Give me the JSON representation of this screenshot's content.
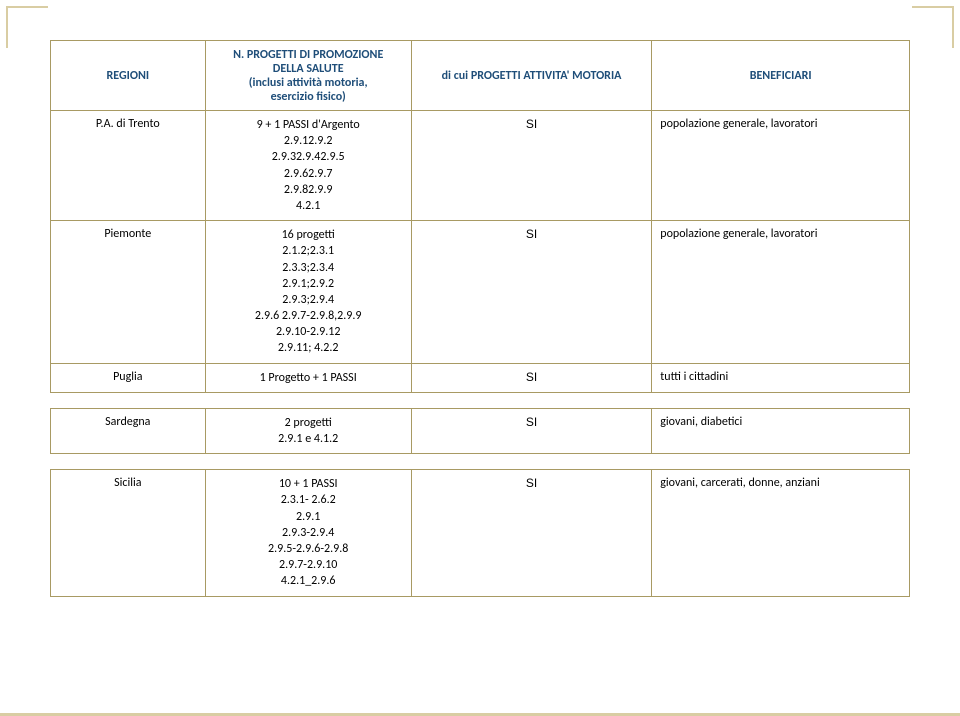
{
  "accent_color": "#1f4e79",
  "border_color": "#a89a63",
  "decor_color": "#d9cda3",
  "headers": {
    "regioni": "REGIONI",
    "progetti": "N. PROGETTI DI PROMOZIONE\nDELLA SALUTE\n(inclusi attività motoria,\nesercizio fisico)",
    "attivita": "di cui PROGETTI ATTIVITA' MOTORIA",
    "beneficiari": "BENEFICIARI"
  },
  "rows": [
    {
      "region": "P.A. di Trento",
      "progetti": [
        "9 + 1 PASSI d'Argento",
        "2.9.12.9.2",
        "2.9.32.9.42.9.5",
        "2.9.62.9.7",
        "2.9.82.9.9",
        "4.2.1"
      ],
      "attivita": "SI",
      "beneficiari": "popolazione generale, lavoratori"
    },
    {
      "region": "Piemonte",
      "progetti": [
        "16 progetti",
        "2.1.2;2.3.1",
        "2.3.3;2.3.4",
        "2.9.1;2.9.2",
        "2.9.3;2.9.4",
        "2.9.6 2.9.7-2.9.8,2.9.9",
        "2.9.10-2.9.12",
        "2.9.11; 4.2.2"
      ],
      "attivita": "SI",
      "beneficiari": "popolazione generale, lavoratori"
    },
    {
      "region": "Puglia",
      "progetti": [
        "1 Progetto + 1 PASSI"
      ],
      "attivita": "SI",
      "beneficiari": "tutti i cittadini"
    },
    {
      "spacer": true
    },
    {
      "region": "Sardegna",
      "progetti": [
        "2 progetti",
        "2.9.1 e 4.1.2"
      ],
      "attivita": "SI",
      "beneficiari": "giovani, diabetici"
    },
    {
      "spacer": true
    },
    {
      "region": "Sicilia",
      "progetti": [
        "10 + 1 PASSI",
        "2.3.1- 2.6.2",
        "2.9.1",
        "2.9.3-2.9.4",
        "2.9.5-2.9.6-2.9.8",
        "2.9.7-2.9.10",
        "4.2.1_2.9.6"
      ],
      "attivita": "SI",
      "beneficiari": "giovani, carcerati, donne, anziani"
    }
  ]
}
